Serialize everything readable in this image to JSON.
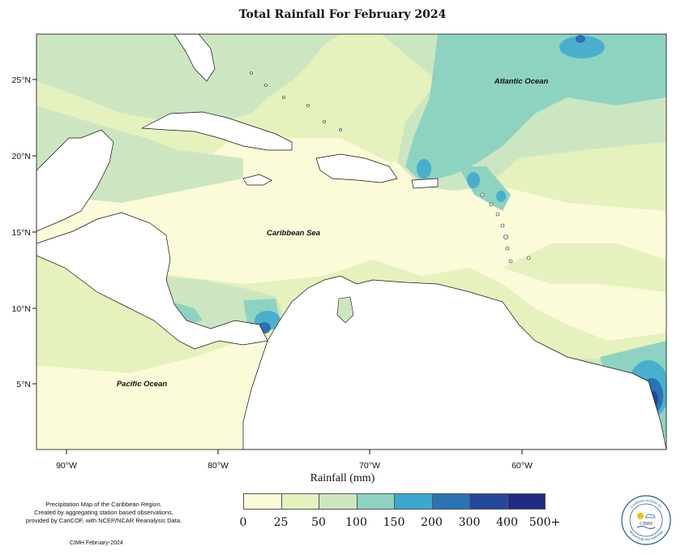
{
  "title": "Total Rainfall For February 2024",
  "map": {
    "lat_ticks": [
      "25°N",
      "20°N",
      "15°N",
      "10°N",
      "5°N"
    ],
    "lon_ticks": [
      "90°W",
      "80°W",
      "70°W",
      "60°W"
    ],
    "labels": {
      "atlantic": "Atlantic Ocean",
      "caribbean": "Caribbean Sea",
      "pacific": "Pacific Ocean"
    }
  },
  "legend": {
    "title": "Rainfall (mm)",
    "bins": [
      {
        "label": "0",
        "color": "#fbfbd9"
      },
      {
        "label": "25",
        "color": "#e5f2bd"
      },
      {
        "label": "50",
        "color": "#cde6c2"
      },
      {
        "label": "100",
        "color": "#8ed3c1"
      },
      {
        "label": "150",
        "color": "#3da8cf"
      },
      {
        "label": "200",
        "color": "#2a73b2"
      },
      {
        "label": "300",
        "color": "#23489a"
      },
      {
        "label": "400",
        "color": "#1f2b86"
      },
      {
        "label": "500+",
        "color": "#0b1c4e"
      }
    ],
    "end_label": "500+"
  },
  "description": {
    "line1": "Precipitation Map of the Caribbean Region.",
    "line2": "Created by aggregating station based observations,",
    "line3": "provided by CariCOF, with NCEP/NCAR Reanalysis Data."
  },
  "credit": "CIMH February-2024",
  "logo_text": "CIMH",
  "logo_ring_top": "Caribbean Institute for",
  "logo_ring_bottom": "Meteorology and Hydrology"
}
